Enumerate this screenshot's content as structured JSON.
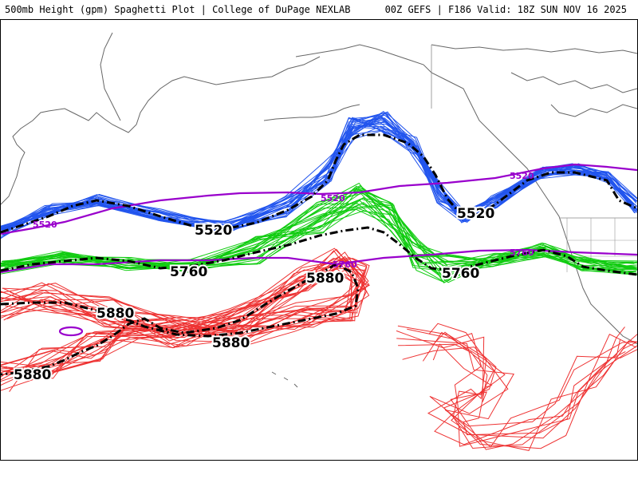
{
  "header": {
    "left_text": "500mb Height (gpm) Spaghetti Plot | College of DuPage NEXLAB",
    "right_text": "00Z GEFS | F186 Valid: 18Z SUN NOV 16 2025"
  },
  "map": {
    "contour_levels": [
      "5520",
      "5760",
      "5880"
    ],
    "mean_labels": {
      "m5520_a": "5520",
      "m5520_b": "5520",
      "m5760_a": "5760",
      "m5760_b": "5760",
      "m5880_a": "5880",
      "m5880_b": "5880",
      "m5880_c": "5880",
      "m5880_d": "5880"
    },
    "climo_labels": {
      "c5520_a": "5520",
      "c5520_b": "5520",
      "c5520_c": "5520",
      "c5760_a": "5760",
      "c5760_b": "5760"
    },
    "colors": {
      "c5520": "#2255ee",
      "c5760": "#11cc11",
      "c5880": "#ee3333",
      "climo": "#9900cc",
      "mean": "#000000",
      "coast": "#666666"
    }
  }
}
